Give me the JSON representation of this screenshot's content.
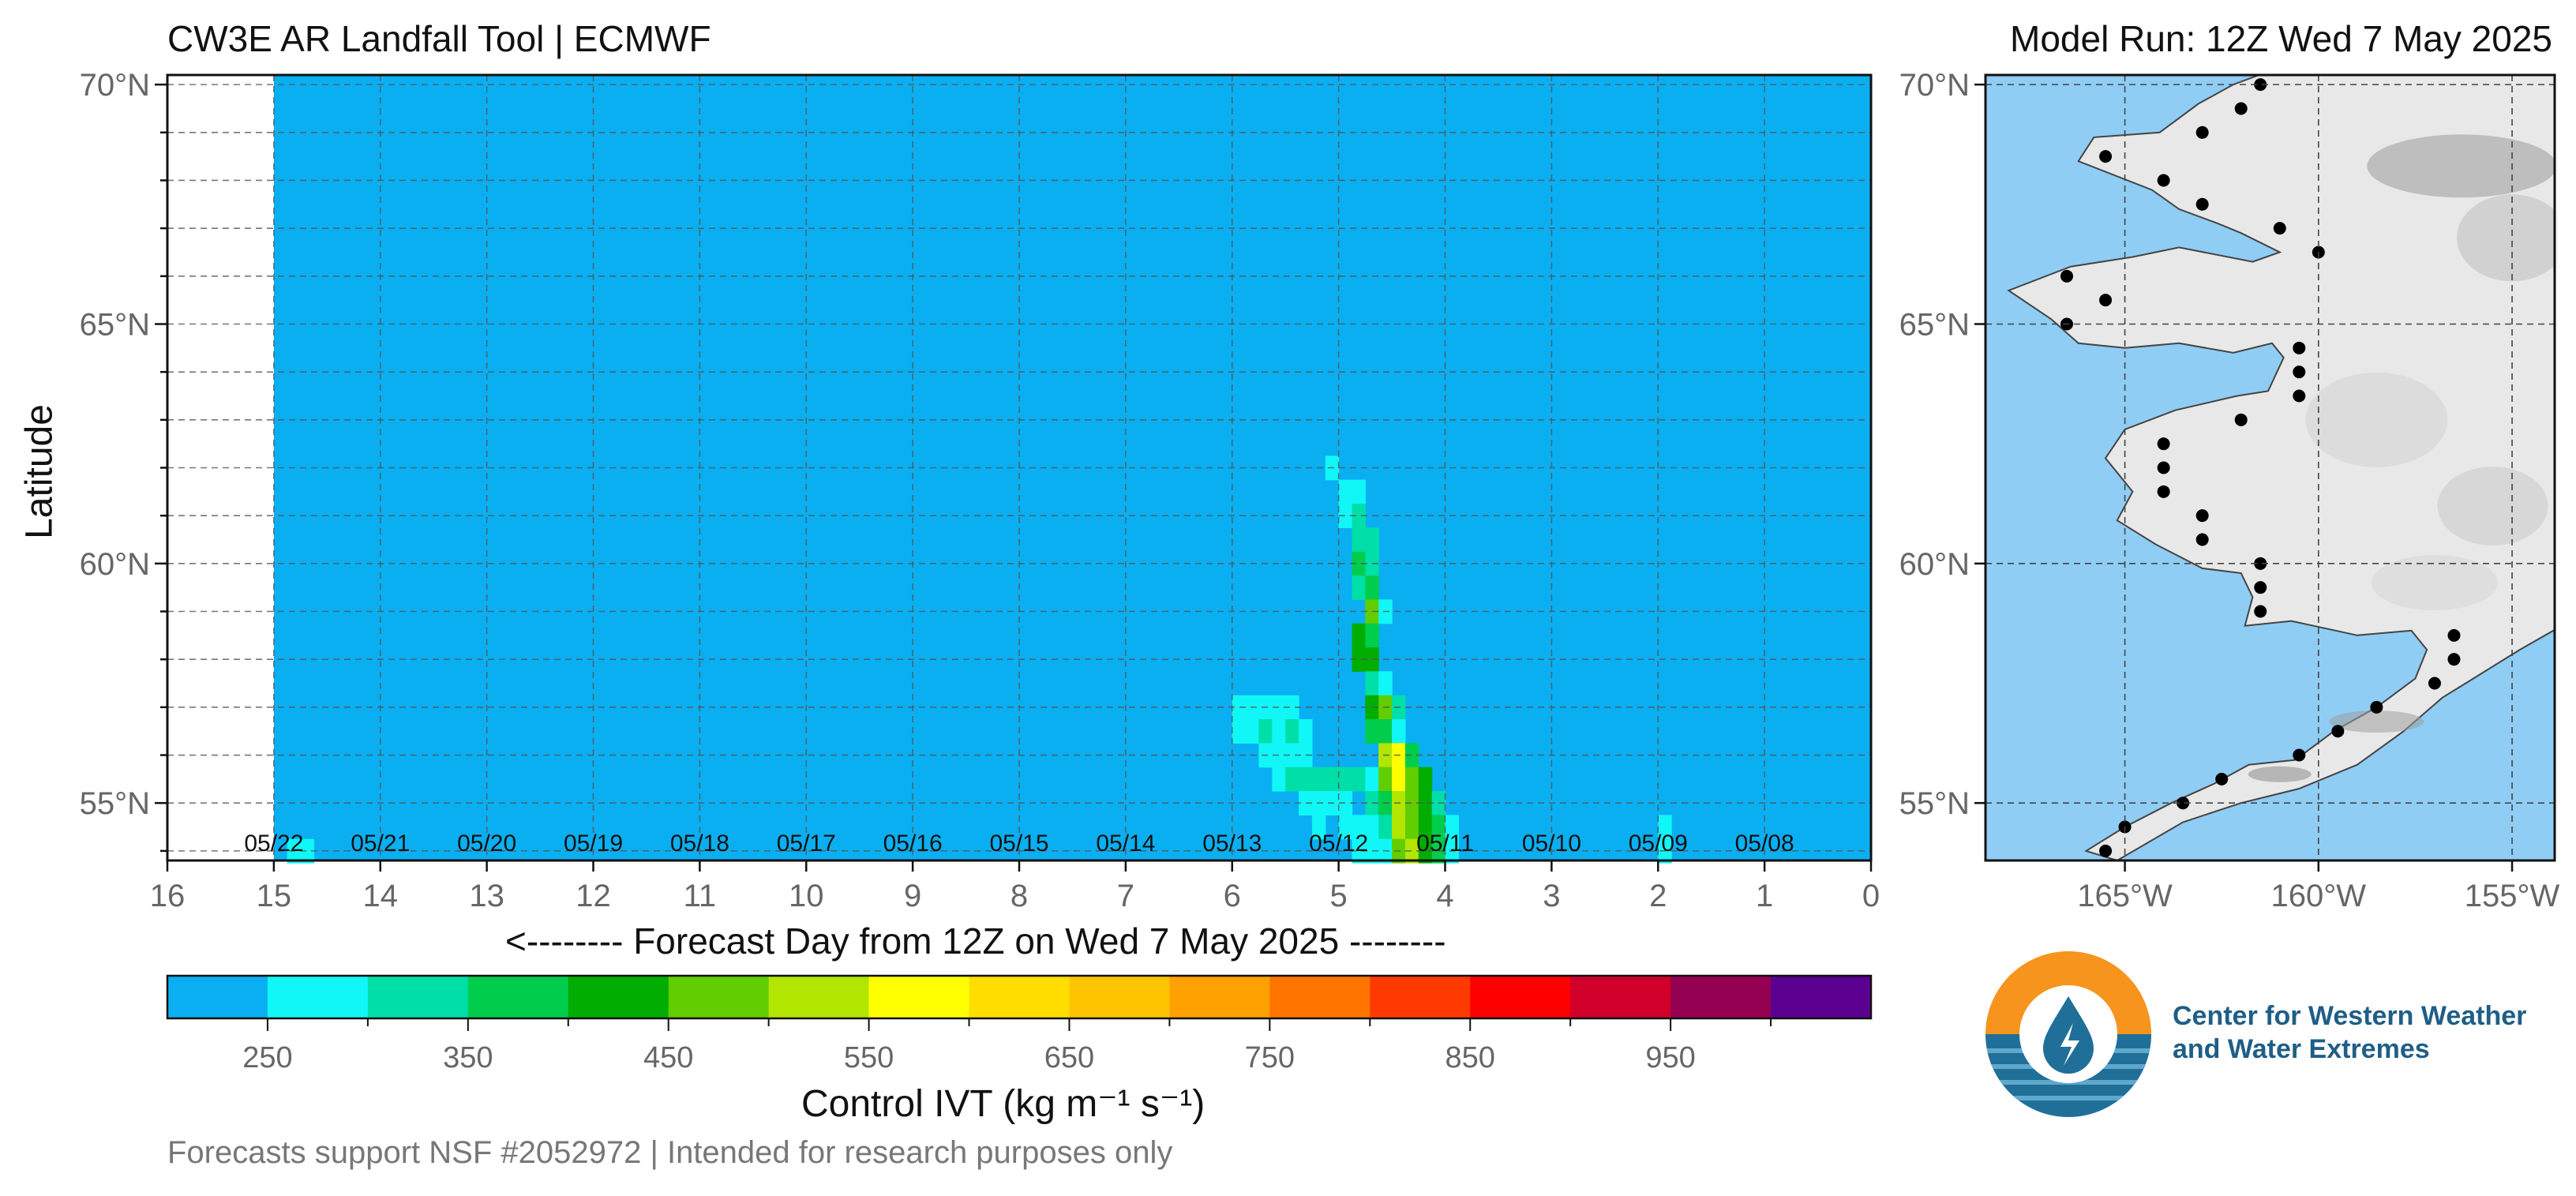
{
  "header": {
    "left_title": "CW3E AR Landfall Tool | ECMWF",
    "right_title": "Model Run: 12Z Wed 7 May 2025"
  },
  "footer": {
    "text": "Forecasts support NSF #2052972 | Intended for research purposes only"
  },
  "logo": {
    "line1": "Center for Western Weather",
    "line2": "and Water Extremes",
    "colors": {
      "sun": "#f7941d",
      "water": "#1f6f99"
    }
  },
  "chart_data": [
    {
      "type": "heatmap",
      "title": "",
      "xlabel": "<-------- Forecast Day from 12Z on Wed 7 May 2025 --------",
      "ylabel": "Latitude",
      "x_reversed": true,
      "xlim": [
        16,
        0
      ],
      "ylim": [
        53.8,
        70.2
      ],
      "x_ticks": [
        16,
        15,
        14,
        13,
        12,
        11,
        10,
        9,
        8,
        7,
        6,
        5,
        4,
        3,
        2,
        1,
        0
      ],
      "y_ticks": [
        {
          "value": 55,
          "label": "55°N"
        },
        {
          "value": 60,
          "label": "60°N"
        },
        {
          "value": 65,
          "label": "65°N"
        },
        {
          "value": 70,
          "label": "70°N"
        }
      ],
      "grid": true,
      "background_color": "#0aaff2",
      "data_start_day": 15,
      "date_labels": [
        {
          "day": 15,
          "label": "05/22"
        },
        {
          "day": 14,
          "label": "05/21"
        },
        {
          "day": 13,
          "label": "05/20"
        },
        {
          "day": 12,
          "label": "05/19"
        },
        {
          "day": 11,
          "label": "05/18"
        },
        {
          "day": 10,
          "label": "05/17"
        },
        {
          "day": 9,
          "label": "05/16"
        },
        {
          "day": 8,
          "label": "05/15"
        },
        {
          "day": 7,
          "label": "05/14"
        },
        {
          "day": 6,
          "label": "05/13"
        },
        {
          "day": 5,
          "label": "05/12"
        },
        {
          "day": 4,
          "label": "05/11"
        },
        {
          "day": 3,
          "label": "05/10"
        },
        {
          "day": 2,
          "label": "05/09"
        },
        {
          "day": 1,
          "label": "05/08"
        }
      ],
      "cells": [
        {
          "day": 14.875,
          "lat": 54.0,
          "ivt": 275
        },
        {
          "day": 14.75,
          "lat": 54.0,
          "ivt": 275
        },
        {
          "day": 5.125,
          "lat": 62.0,
          "ivt": 275
        },
        {
          "day": 5.0,
          "lat": 61.5,
          "ivt": 275
        },
        {
          "day": 4.875,
          "lat": 61.5,
          "ivt": 275
        },
        {
          "day": 5.0,
          "lat": 61.0,
          "ivt": 275
        },
        {
          "day": 4.875,
          "lat": 61.0,
          "ivt": 325
        },
        {
          "day": 4.875,
          "lat": 60.5,
          "ivt": 325
        },
        {
          "day": 4.75,
          "lat": 60.5,
          "ivt": 325
        },
        {
          "day": 4.875,
          "lat": 60.0,
          "ivt": 375
        },
        {
          "day": 4.75,
          "lat": 60.0,
          "ivt": 325
        },
        {
          "day": 4.875,
          "lat": 59.5,
          "ivt": 325
        },
        {
          "day": 4.75,
          "lat": 59.5,
          "ivt": 375
        },
        {
          "day": 4.75,
          "lat": 59.0,
          "ivt": 475
        },
        {
          "day": 4.625,
          "lat": 59.0,
          "ivt": 275
        },
        {
          "day": 4.875,
          "lat": 58.5,
          "ivt": 425
        },
        {
          "day": 4.75,
          "lat": 58.5,
          "ivt": 375
        },
        {
          "day": 4.875,
          "lat": 58.0,
          "ivt": 425
        },
        {
          "day": 4.75,
          "lat": 58.0,
          "ivt": 425
        },
        {
          "day": 4.75,
          "lat": 57.5,
          "ivt": 325
        },
        {
          "day": 4.625,
          "lat": 57.5,
          "ivt": 275
        },
        {
          "day": 4.75,
          "lat": 57.0,
          "ivt": 425
        },
        {
          "day": 4.625,
          "lat": 57.0,
          "ivt": 475
        },
        {
          "day": 4.5,
          "lat": 57.0,
          "ivt": 325
        },
        {
          "day": 6.0,
          "lat": 57.0,
          "ivt": 275
        },
        {
          "day": 5.875,
          "lat": 57.0,
          "ivt": 275
        },
        {
          "day": 5.75,
          "lat": 57.0,
          "ivt": 275
        },
        {
          "day": 5.625,
          "lat": 57.0,
          "ivt": 275
        },
        {
          "day": 5.5,
          "lat": 57.0,
          "ivt": 275
        },
        {
          "day": 6.0,
          "lat": 56.5,
          "ivt": 275
        },
        {
          "day": 5.875,
          "lat": 56.5,
          "ivt": 275
        },
        {
          "day": 5.75,
          "lat": 56.5,
          "ivt": 325
        },
        {
          "day": 5.625,
          "lat": 56.5,
          "ivt": 275
        },
        {
          "day": 5.5,
          "lat": 56.5,
          "ivt": 325
        },
        {
          "day": 5.375,
          "lat": 56.5,
          "ivt": 275
        },
        {
          "day": 4.75,
          "lat": 56.5,
          "ivt": 375
        },
        {
          "day": 4.625,
          "lat": 56.5,
          "ivt": 375
        },
        {
          "day": 4.5,
          "lat": 56.5,
          "ivt": 275
        },
        {
          "day": 5.75,
          "lat": 56.0,
          "ivt": 275
        },
        {
          "day": 5.625,
          "lat": 56.0,
          "ivt": 275
        },
        {
          "day": 5.5,
          "lat": 56.0,
          "ivt": 275
        },
        {
          "day": 5.375,
          "lat": 56.0,
          "ivt": 275
        },
        {
          "day": 4.625,
          "lat": 56.0,
          "ivt": 525
        },
        {
          "day": 4.5,
          "lat": 56.0,
          "ivt": 575
        },
        {
          "day": 4.375,
          "lat": 56.0,
          "ivt": 375
        },
        {
          "day": 5.625,
          "lat": 55.5,
          "ivt": 275
        },
        {
          "day": 5.5,
          "lat": 55.5,
          "ivt": 325
        },
        {
          "day": 5.375,
          "lat": 55.5,
          "ivt": 325
        },
        {
          "day": 5.25,
          "lat": 55.5,
          "ivt": 325
        },
        {
          "day": 5.125,
          "lat": 55.5,
          "ivt": 325
        },
        {
          "day": 5.0,
          "lat": 55.5,
          "ivt": 325
        },
        {
          "day": 4.875,
          "lat": 55.5,
          "ivt": 325
        },
        {
          "day": 4.75,
          "lat": 55.5,
          "ivt": 275
        },
        {
          "day": 4.625,
          "lat": 55.5,
          "ivt": 475
        },
        {
          "day": 4.5,
          "lat": 55.5,
          "ivt": 575
        },
        {
          "day": 4.375,
          "lat": 55.5,
          "ivt": 475
        },
        {
          "day": 4.25,
          "lat": 55.5,
          "ivt": 425
        },
        {
          "day": 5.375,
          "lat": 55.0,
          "ivt": 275
        },
        {
          "day": 5.25,
          "lat": 55.0,
          "ivt": 275
        },
        {
          "day": 5.125,
          "lat": 55.0,
          "ivt": 275
        },
        {
          "day": 5.0,
          "lat": 55.0,
          "ivt": 275
        },
        {
          "day": 4.75,
          "lat": 55.0,
          "ivt": 325
        },
        {
          "day": 4.625,
          "lat": 55.0,
          "ivt": 375
        },
        {
          "day": 4.5,
          "lat": 55.0,
          "ivt": 525
        },
        {
          "day": 4.375,
          "lat": 55.0,
          "ivt": 475
        },
        {
          "day": 4.25,
          "lat": 55.0,
          "ivt": 425
        },
        {
          "day": 4.125,
          "lat": 55.0,
          "ivt": 325
        },
        {
          "day": 5.25,
          "lat": 54.5,
          "ivt": 275
        },
        {
          "day": 5.0,
          "lat": 54.5,
          "ivt": 275
        },
        {
          "day": 4.875,
          "lat": 54.5,
          "ivt": 275
        },
        {
          "day": 4.75,
          "lat": 54.5,
          "ivt": 275
        },
        {
          "day": 4.625,
          "lat": 54.5,
          "ivt": 325
        },
        {
          "day": 4.5,
          "lat": 54.5,
          "ivt": 525
        },
        {
          "day": 4.375,
          "lat": 54.5,
          "ivt": 475
        },
        {
          "day": 4.25,
          "lat": 54.5,
          "ivt": 425
        },
        {
          "day": 4.125,
          "lat": 54.5,
          "ivt": 375
        },
        {
          "day": 4.0,
          "lat": 54.5,
          "ivt": 275
        },
        {
          "day": 4.875,
          "lat": 54.0,
          "ivt": 275
        },
        {
          "day": 4.75,
          "lat": 54.0,
          "ivt": 275
        },
        {
          "day": 4.625,
          "lat": 54.0,
          "ivt": 275
        },
        {
          "day": 4.5,
          "lat": 54.0,
          "ivt": 475
        },
        {
          "day": 4.375,
          "lat": 54.0,
          "ivt": 525
        },
        {
          "day": 4.25,
          "lat": 54.0,
          "ivt": 425
        },
        {
          "day": 4.125,
          "lat": 54.0,
          "ivt": 375
        },
        {
          "day": 4.0,
          "lat": 54.0,
          "ivt": 275
        },
        {
          "day": 2.0,
          "lat": 54.5,
          "ivt": 275
        },
        {
          "day": 2.0,
          "lat": 54.0,
          "ivt": 275
        }
      ]
    },
    {
      "type": "colorbar",
      "label": "Control IVT (kg m⁻¹ s⁻¹)",
      "range": [
        200,
        1050
      ],
      "bins": [
        {
          "from": 200,
          "to": 250,
          "color": "#0aaff2"
        },
        {
          "from": 250,
          "to": 300,
          "color": "#11f7f7"
        },
        {
          "from": 300,
          "to": 350,
          "color": "#00dfa8"
        },
        {
          "from": 350,
          "to": 400,
          "color": "#00cd4c"
        },
        {
          "from": 400,
          "to": 450,
          "color": "#00ad00"
        },
        {
          "from": 450,
          "to": 500,
          "color": "#62cd00"
        },
        {
          "from": 500,
          "to": 550,
          "color": "#b2e600"
        },
        {
          "from": 550,
          "to": 600,
          "color": "#ffff00"
        },
        {
          "from": 600,
          "to": 650,
          "color": "#ffde00"
        },
        {
          "from": 650,
          "to": 700,
          "color": "#ffc400"
        },
        {
          "from": 700,
          "to": 750,
          "color": "#ffa100"
        },
        {
          "from": 750,
          "to": 800,
          "color": "#ff7500"
        },
        {
          "from": 800,
          "to": 850,
          "color": "#ff3a00"
        },
        {
          "from": 850,
          "to": 900,
          "color": "#ff0000"
        },
        {
          "from": 900,
          "to": 950,
          "color": "#d0002a"
        },
        {
          "from": 950,
          "to": 1000,
          "color": "#940052"
        },
        {
          "from": 1000,
          "to": 1050,
          "color": "#5b0091"
        }
      ],
      "tick_labels": [
        250,
        350,
        450,
        550,
        650,
        750,
        850,
        950
      ]
    },
    {
      "type": "map",
      "title": "",
      "lon_ticks": [
        {
          "value": -165,
          "label": "165°W"
        },
        {
          "value": -160,
          "label": "160°W"
        },
        {
          "value": -155,
          "label": "155°W"
        }
      ],
      "lat_ticks": [
        {
          "value": 55,
          "label": "55°N"
        },
        {
          "value": 60,
          "label": "60°N"
        },
        {
          "value": 65,
          "label": "65°N"
        },
        {
          "value": 70,
          "label": "70°N"
        }
      ],
      "lon_range": [
        -168.6,
        -153.9
      ],
      "lat_range": [
        53.8,
        70.2
      ],
      "ocean_color": "#8fcdf5",
      "land_color": "#e8e8e8",
      "landfall_points": [
        [
          -161.5,
          70.0
        ],
        [
          -162.0,
          69.5
        ],
        [
          -163.0,
          69.0
        ],
        [
          -165.5,
          68.5
        ],
        [
          -164.0,
          68.0
        ],
        [
          -163.0,
          67.5
        ],
        [
          -161.0,
          67.0
        ],
        [
          -160.0,
          66.5
        ],
        [
          -166.5,
          66.0
        ],
        [
          -165.5,
          65.5
        ],
        [
          -166.5,
          65.0
        ],
        [
          -160.5,
          64.5
        ],
        [
          -160.5,
          64.0
        ],
        [
          -160.5,
          63.5
        ],
        [
          -162.0,
          63.0
        ],
        [
          -164.0,
          62.5
        ],
        [
          -164.0,
          62.0
        ],
        [
          -164.0,
          61.5
        ],
        [
          -163.0,
          61.0
        ],
        [
          -163.0,
          60.5
        ],
        [
          -161.5,
          60.0
        ],
        [
          -161.5,
          59.5
        ],
        [
          -161.5,
          59.0
        ],
        [
          -156.5,
          58.5
        ],
        [
          -156.5,
          58.0
        ],
        [
          -157.0,
          57.5
        ],
        [
          -158.5,
          57.0
        ],
        [
          -159.5,
          56.5
        ],
        [
          -160.5,
          56.0
        ],
        [
          -162.5,
          55.5
        ],
        [
          -163.5,
          55.0
        ],
        [
          -165.0,
          54.5
        ],
        [
          -165.5,
          54.0
        ]
      ]
    }
  ]
}
